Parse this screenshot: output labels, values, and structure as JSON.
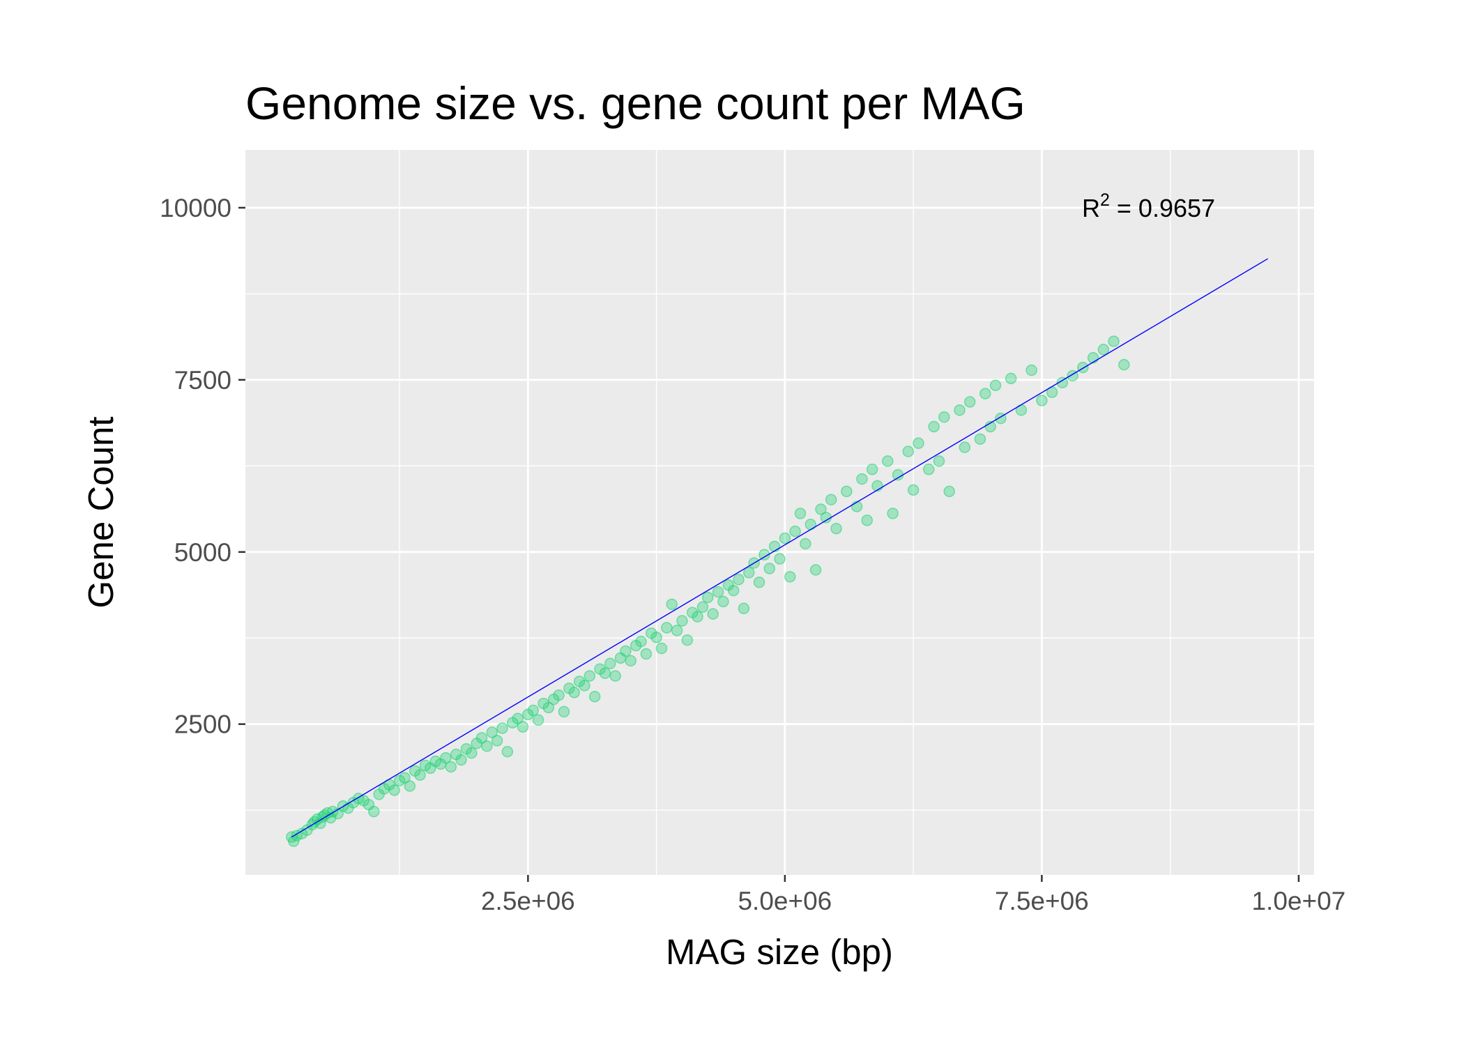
{
  "chart_data": {
    "type": "scatter",
    "title": "Genome size vs. gene count per MAG",
    "xlabel": "MAG size (bp)",
    "ylabel": "Gene Count",
    "xlim": [
      -250000,
      10150000
    ],
    "ylim": [
      310,
      10840
    ],
    "x_ticks": [
      2500000,
      5000000,
      7500000,
      10000000
    ],
    "x_tick_labels": [
      "2.5e+06",
      "5.0e+06",
      "7.5e+06",
      "1.0e+07"
    ],
    "y_ticks": [
      2500,
      5000,
      7500,
      10000
    ],
    "y_tick_labels": [
      "2500",
      "5000",
      "7500",
      "10000"
    ],
    "grid": true,
    "colors": {
      "panel_background": "#ebebeb",
      "grid": "#ffffff",
      "points": "#1ed173",
      "fit_line": "#0000ff"
    },
    "point_alpha": 0.35,
    "fit_line": {
      "x": [
        200000,
        9700000
      ],
      "y": [
        860,
        9260
      ]
    },
    "annotation": {
      "text": "R",
      "superscript": "2",
      "value": " = 0.9657",
      "x": 8500000,
      "y": 10000
    },
    "series": [
      {
        "points": [
          [
            200000,
            860
          ],
          [
            220000,
            800
          ],
          [
            250000,
            880
          ],
          [
            300000,
            910
          ],
          [
            350000,
            960
          ],
          [
            400000,
            1040
          ],
          [
            420000,
            1080
          ],
          [
            450000,
            1120
          ],
          [
            480000,
            1060
          ],
          [
            500000,
            1150
          ],
          [
            520000,
            1180
          ],
          [
            550000,
            1210
          ],
          [
            580000,
            1140
          ],
          [
            600000,
            1230
          ],
          [
            650000,
            1200
          ],
          [
            700000,
            1310
          ],
          [
            750000,
            1280
          ],
          [
            800000,
            1360
          ],
          [
            850000,
            1420
          ],
          [
            900000,
            1390
          ],
          [
            950000,
            1330
          ],
          [
            1000000,
            1230
          ],
          [
            1050000,
            1480
          ],
          [
            1100000,
            1560
          ],
          [
            1150000,
            1620
          ],
          [
            1200000,
            1540
          ],
          [
            1250000,
            1680
          ],
          [
            1300000,
            1720
          ],
          [
            1350000,
            1600
          ],
          [
            1400000,
            1820
          ],
          [
            1450000,
            1760
          ],
          [
            1500000,
            1900
          ],
          [
            1550000,
            1860
          ],
          [
            1600000,
            1960
          ],
          [
            1650000,
            1920
          ],
          [
            1700000,
            2010
          ],
          [
            1750000,
            1880
          ],
          [
            1800000,
            2060
          ],
          [
            1850000,
            1980
          ],
          [
            1900000,
            2140
          ],
          [
            1950000,
            2080
          ],
          [
            2000000,
            2220
          ],
          [
            2050000,
            2300
          ],
          [
            2100000,
            2180
          ],
          [
            2150000,
            2380
          ],
          [
            2200000,
            2260
          ],
          [
            2250000,
            2440
          ],
          [
            2300000,
            2100
          ],
          [
            2350000,
            2520
          ],
          [
            2400000,
            2580
          ],
          [
            2450000,
            2460
          ],
          [
            2500000,
            2640
          ],
          [
            2550000,
            2700
          ],
          [
            2600000,
            2560
          ],
          [
            2650000,
            2800
          ],
          [
            2700000,
            2740
          ],
          [
            2750000,
            2860
          ],
          [
            2800000,
            2920
          ],
          [
            2850000,
            2680
          ],
          [
            2900000,
            3020
          ],
          [
            2950000,
            2960
          ],
          [
            3000000,
            3120
          ],
          [
            3050000,
            3060
          ],
          [
            3100000,
            3200
          ],
          [
            3150000,
            2900
          ],
          [
            3200000,
            3300
          ],
          [
            3250000,
            3240
          ],
          [
            3300000,
            3380
          ],
          [
            3350000,
            3200
          ],
          [
            3400000,
            3460
          ],
          [
            3450000,
            3560
          ],
          [
            3500000,
            3420
          ],
          [
            3550000,
            3640
          ],
          [
            3600000,
            3700
          ],
          [
            3650000,
            3520
          ],
          [
            3700000,
            3820
          ],
          [
            3750000,
            3760
          ],
          [
            3800000,
            3600
          ],
          [
            3850000,
            3900
          ],
          [
            3900000,
            4240
          ],
          [
            3950000,
            3860
          ],
          [
            4000000,
            4000
          ],
          [
            4050000,
            3720
          ],
          [
            4100000,
            4120
          ],
          [
            4150000,
            4060
          ],
          [
            4200000,
            4200
          ],
          [
            4250000,
            4340
          ],
          [
            4300000,
            4100
          ],
          [
            4350000,
            4420
          ],
          [
            4400000,
            4280
          ],
          [
            4450000,
            4520
          ],
          [
            4500000,
            4440
          ],
          [
            4550000,
            4600
          ],
          [
            4600000,
            4180
          ],
          [
            4650000,
            4700
          ],
          [
            4700000,
            4840
          ],
          [
            4750000,
            4560
          ],
          [
            4800000,
            4960
          ],
          [
            4850000,
            4760
          ],
          [
            4900000,
            5080
          ],
          [
            4950000,
            4900
          ],
          [
            5000000,
            5200
          ],
          [
            5050000,
            4640
          ],
          [
            5100000,
            5300
          ],
          [
            5150000,
            5560
          ],
          [
            5200000,
            5120
          ],
          [
            5250000,
            5400
          ],
          [
            5300000,
            4740
          ],
          [
            5350000,
            5620
          ],
          [
            5400000,
            5500
          ],
          [
            5450000,
            5760
          ],
          [
            5500000,
            5340
          ],
          [
            5600000,
            5880
          ],
          [
            5700000,
            5660
          ],
          [
            5750000,
            6060
          ],
          [
            5800000,
            5460
          ],
          [
            5850000,
            6200
          ],
          [
            5900000,
            5960
          ],
          [
            6000000,
            6320
          ],
          [
            6050000,
            5560
          ],
          [
            6100000,
            6120
          ],
          [
            6200000,
            6460
          ],
          [
            6250000,
            5900
          ],
          [
            6300000,
            6580
          ],
          [
            6400000,
            6200
          ],
          [
            6450000,
            6820
          ],
          [
            6500000,
            6320
          ],
          [
            6550000,
            6960
          ],
          [
            6600000,
            5880
          ],
          [
            6700000,
            7060
          ],
          [
            6750000,
            6520
          ],
          [
            6800000,
            7180
          ],
          [
            6900000,
            6640
          ],
          [
            6950000,
            7300
          ],
          [
            7000000,
            6820
          ],
          [
            7050000,
            7420
          ],
          [
            7100000,
            6940
          ],
          [
            7200000,
            7520
          ],
          [
            7300000,
            7060
          ],
          [
            7400000,
            7640
          ],
          [
            7500000,
            7200
          ],
          [
            7600000,
            7320
          ],
          [
            7700000,
            7460
          ],
          [
            7800000,
            7560
          ],
          [
            7900000,
            7680
          ],
          [
            8000000,
            7820
          ],
          [
            8100000,
            7940
          ],
          [
            8200000,
            8060
          ],
          [
            8300000,
            7720
          ]
        ]
      }
    ]
  }
}
